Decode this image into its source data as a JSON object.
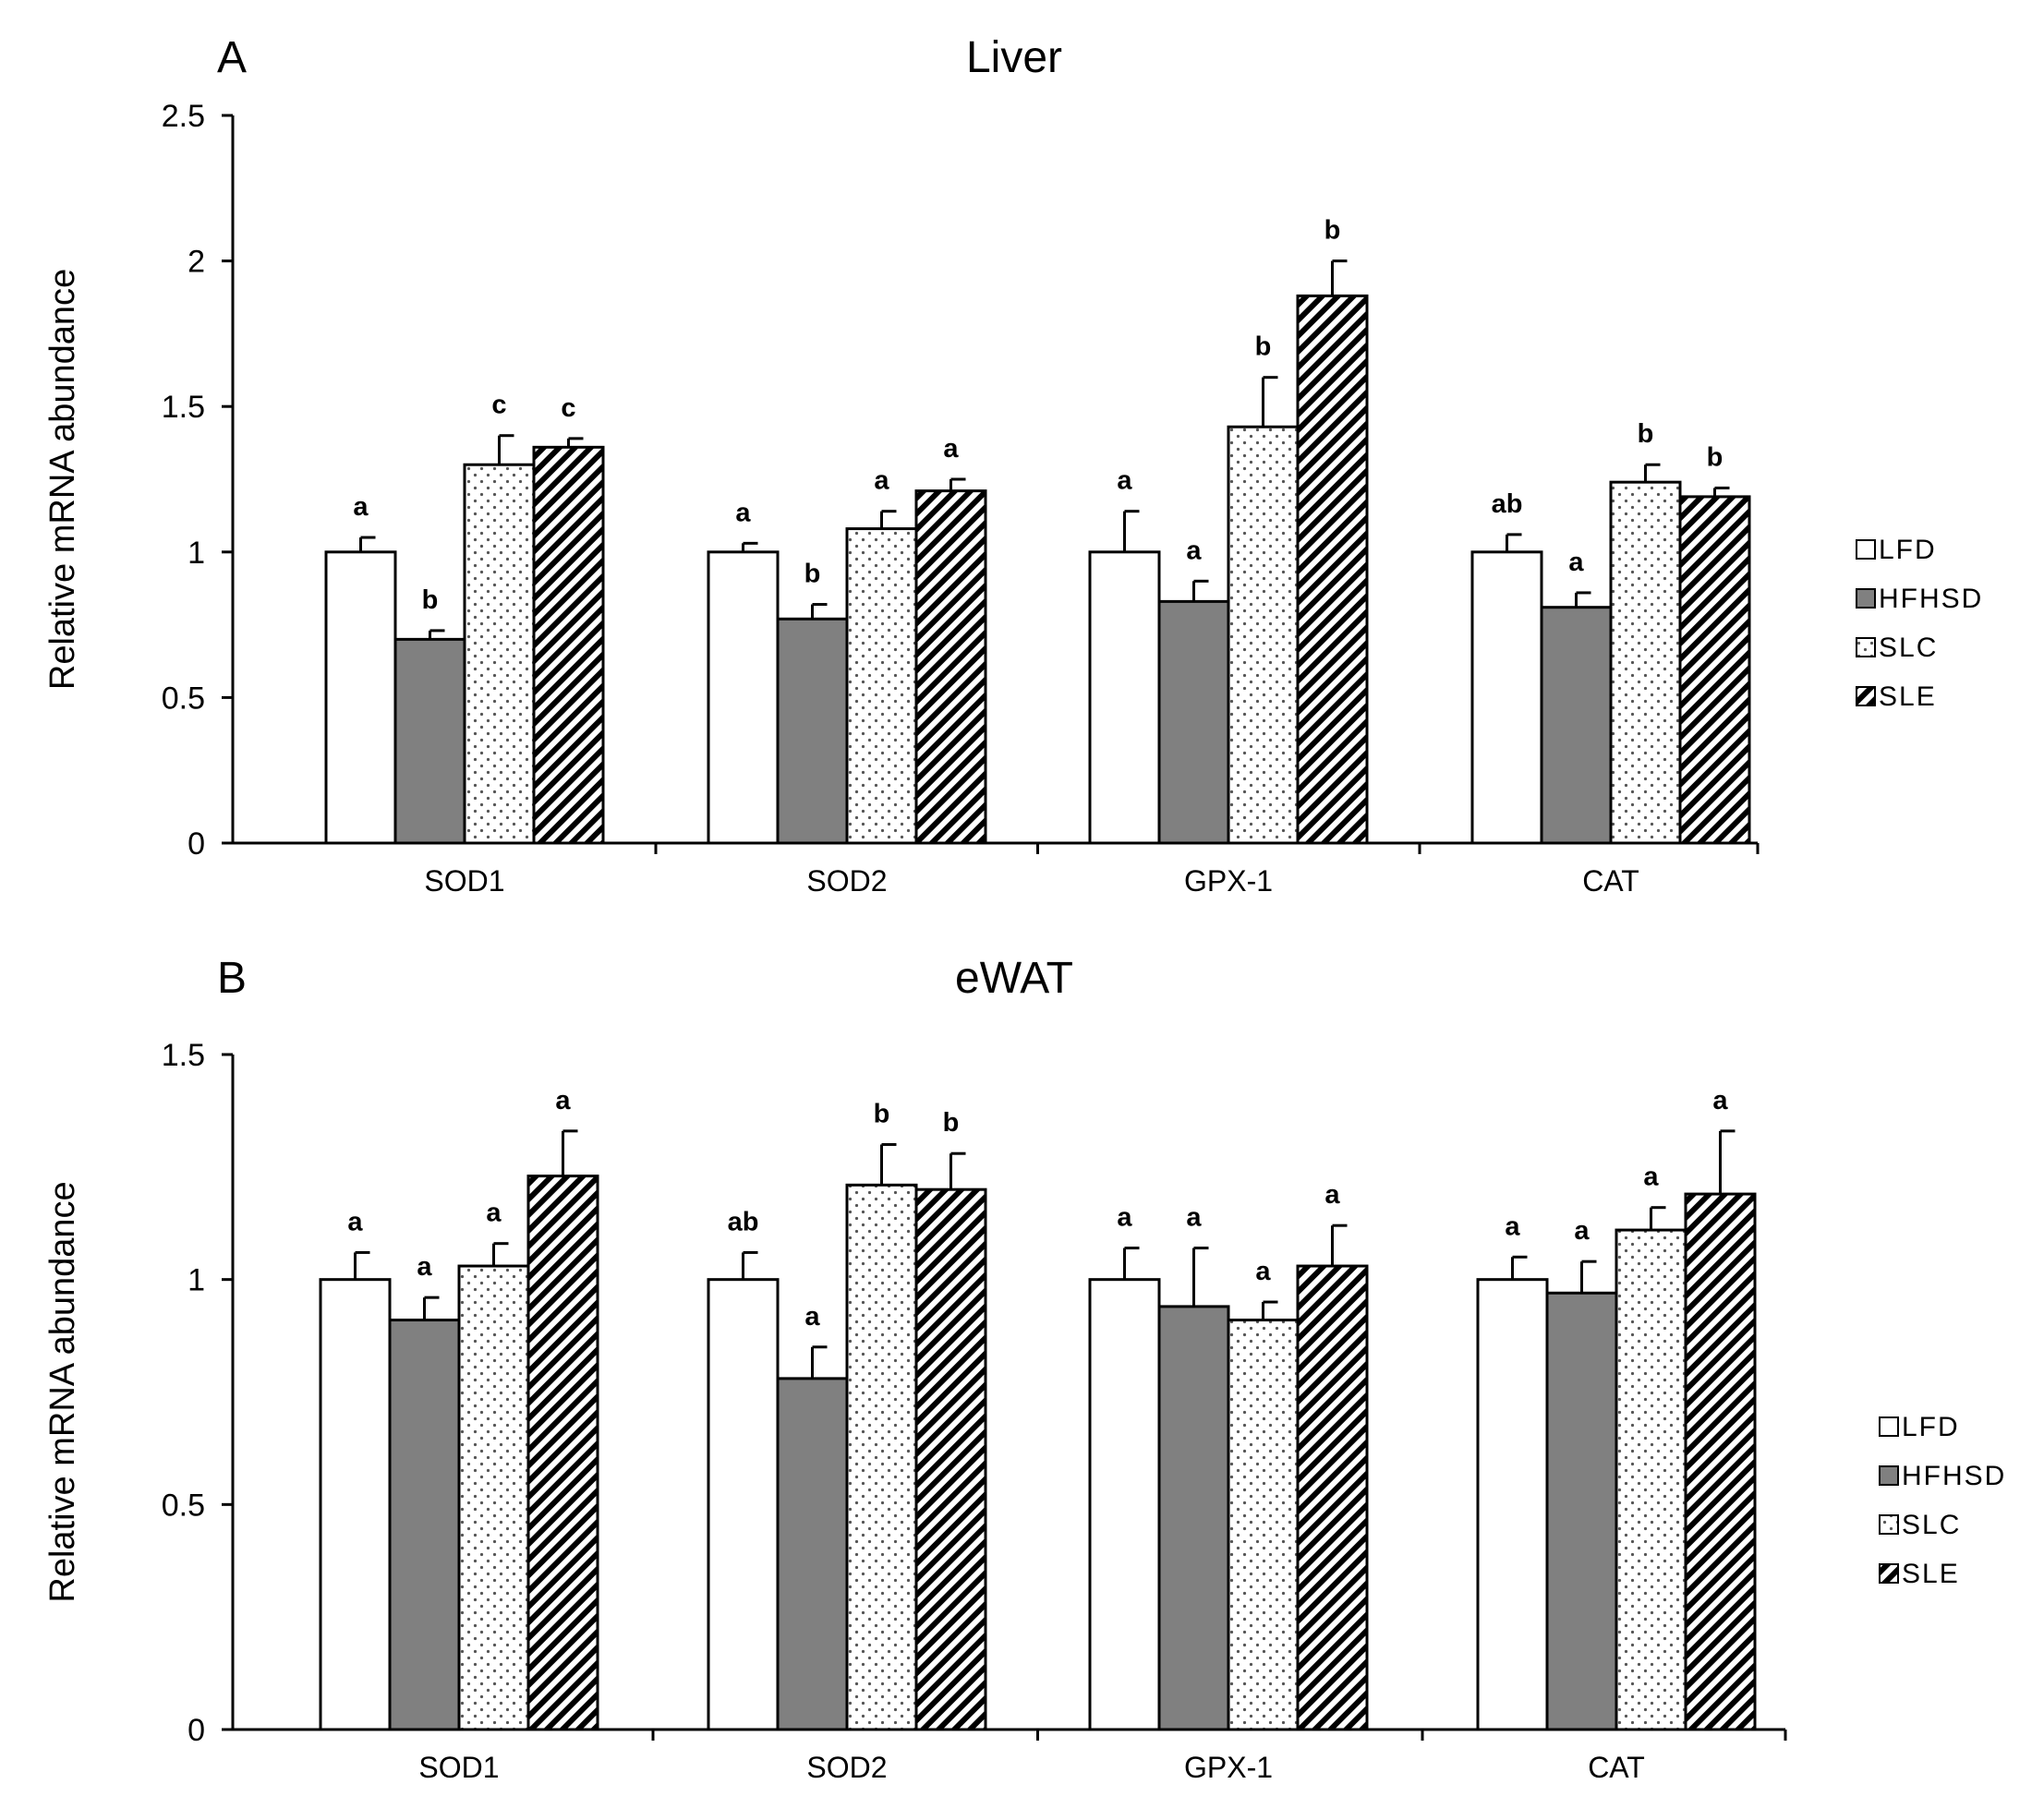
{
  "colors": {
    "LFD": "#ffffff",
    "HFHSD": "#808080",
    "SLC": "#ffffff",
    "SLE": "#ffffff",
    "pattern_stripe": "#000000",
    "pattern_dot": "#555555"
  },
  "legend": [
    "LFD",
    "HFHSD",
    "SLC",
    "SLE"
  ],
  "chart_data": [
    {
      "type": "bar",
      "panel": "A",
      "title": "Liver",
      "xlabel": "",
      "ylabel": "Relative mRNA abundance",
      "ylim": [
        0,
        2.5
      ],
      "yticks": [
        0,
        0.5,
        1,
        1.5,
        2,
        2.5
      ],
      "ytick_labels": [
        "0",
        "0.5",
        "1",
        "1.5",
        "2",
        "2.5"
      ],
      "categories": [
        "SOD1",
        "SOD2",
        "GPX-1",
        "CAT"
      ],
      "series": [
        {
          "name": "LFD",
          "values": [
            1.0,
            1.0,
            1.0,
            1.0
          ],
          "errors": [
            0.05,
            0.03,
            0.14,
            0.06
          ],
          "labels": [
            "a",
            "a",
            "a",
            "ab"
          ]
        },
        {
          "name": "HFHSD",
          "values": [
            0.7,
            0.77,
            0.83,
            0.81
          ],
          "errors": [
            0.03,
            0.05,
            0.07,
            0.05
          ],
          "labels": [
            "b",
            "b",
            "a",
            "a"
          ]
        },
        {
          "name": "SLC",
          "values": [
            1.3,
            1.08,
            1.43,
            1.24
          ],
          "errors": [
            0.1,
            0.06,
            0.17,
            0.06
          ],
          "labels": [
            "c",
            "a",
            "b",
            "b"
          ]
        },
        {
          "name": "SLE",
          "values": [
            1.36,
            1.21,
            1.88,
            1.19
          ],
          "errors": [
            0.03,
            0.04,
            0.12,
            0.03
          ],
          "labels": [
            "c",
            "a",
            "b",
            "b"
          ]
        }
      ],
      "legend_position": "right"
    },
    {
      "type": "bar",
      "panel": "B",
      "title": "eWAT",
      "xlabel": "",
      "ylabel": "Relative mRNA abundance",
      "ylim": [
        0,
        1.5
      ],
      "yticks": [
        0,
        0.5,
        1,
        1.5
      ],
      "ytick_labels": [
        "0",
        "0.5",
        "1",
        "1.5"
      ],
      "categories": [
        "SOD1",
        "SOD2",
        "GPX-1",
        "CAT"
      ],
      "series": [
        {
          "name": "LFD",
          "values": [
            1.0,
            1.0,
            1.0,
            1.0
          ],
          "errors": [
            0.06,
            0.06,
            0.07,
            0.05
          ],
          "labels": [
            "a",
            "ab",
            "a",
            "a"
          ]
        },
        {
          "name": "HFHSD",
          "values": [
            0.91,
            0.78,
            0.94,
            0.97
          ],
          "errors": [
            0.05,
            0.07,
            0.13,
            0.07
          ],
          "labels": [
            "a",
            "a",
            "a",
            "a"
          ]
        },
        {
          "name": "SLC",
          "values": [
            1.03,
            1.21,
            0.91,
            1.11
          ],
          "errors": [
            0.05,
            0.09,
            0.04,
            0.05
          ],
          "labels": [
            "a",
            "b",
            "a",
            "a"
          ]
        },
        {
          "name": "SLE",
          "values": [
            1.23,
            1.2,
            1.03,
            1.19
          ],
          "errors": [
            0.1,
            0.08,
            0.09,
            0.14
          ],
          "labels": [
            "a",
            "b",
            "a",
            "a"
          ]
        }
      ],
      "legend_position": "right"
    }
  ]
}
